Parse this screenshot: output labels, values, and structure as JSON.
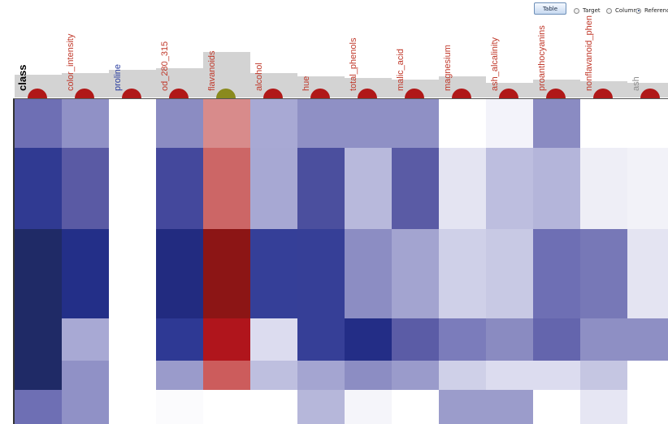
{
  "toolbar": {
    "table_button_label": "Table",
    "radio_options": [
      {
        "label": "Target",
        "checked": false
      },
      {
        "label": "Column",
        "checked": false
      },
      {
        "label": "Reference",
        "checked": true
      }
    ]
  },
  "chart_data": {
    "type": "heatmap",
    "columns": [
      {
        "name": "class",
        "color": "#000000",
        "marker": "#b01818"
      },
      {
        "name": "color_intensity",
        "color": "#c0392b",
        "marker": "#b01818"
      },
      {
        "name": "proline",
        "color": "#2a3ea0",
        "marker": "#b01818"
      },
      {
        "name": "od_280_315",
        "color": "#c0392b",
        "marker": "#b01818"
      },
      {
        "name": "flavanoids",
        "color": "#c0392b",
        "marker": "#8a8a1e"
      },
      {
        "name": "alcohol",
        "color": "#c0392b",
        "marker": "#b01818"
      },
      {
        "name": "hue",
        "color": "#c0392b",
        "marker": "#b01818"
      },
      {
        "name": "total_phenols",
        "color": "#c0392b",
        "marker": "#b01818"
      },
      {
        "name": "malic_acid",
        "color": "#c0392b",
        "marker": "#b01818"
      },
      {
        "name": "magnesium",
        "color": "#c0392b",
        "marker": "#b01818"
      },
      {
        "name": "ash_alcalinity",
        "color": "#c0392b",
        "marker": "#b01818"
      },
      {
        "name": "proanthocyanins",
        "color": "#c0392b",
        "marker": "#b01818"
      },
      {
        "name": "nonflavanoid_phen",
        "color": "#c0392b",
        "marker": "#b01818"
      },
      {
        "name": "ash",
        "color": "#8f8f8f",
        "marker": "#b01818"
      }
    ],
    "rows": [
      {
        "weight": 60,
        "colors": [
          "#6e6fb4",
          "#9091c6",
          "#ffffff",
          "#8b8cc2",
          "#d88b8b",
          "#a8a9d4",
          "#8f90c5",
          "#8f90c5",
          "#8f90c5",
          "#ffffff",
          "#f3f3fa",
          "#8a8bc2",
          "#ffffff",
          "#ffffff"
        ]
      },
      {
        "weight": 100,
        "colors": [
          "#303a92",
          "#5a5aa4",
          "#ffffff",
          "#44489c",
          "#cc6666",
          "#a7a8d3",
          "#4b4f9e",
          "#b8b9dc",
          "#5a5ba5",
          "#e4e4f2",
          "#bdbedf",
          "#b4b5da",
          "#eeeef6",
          "#f2f2f8"
        ]
      },
      {
        "weight": 110,
        "colors": [
          "#1f2a66",
          "#232f88",
          "#ffffff",
          "#222b80",
          "#8c1515",
          "#353f98",
          "#363f97",
          "#8c8dc3",
          "#a3a4d0",
          "#cfd0e8",
          "#c8c9e4",
          "#6e6fb4",
          "#7778b7",
          "#e4e4f2"
        ]
      },
      {
        "weight": 52,
        "colors": [
          "#1f2a66",
          "#a8a9d4",
          "#ffffff",
          "#2e3994",
          "#b0151c",
          "#dcdcef",
          "#363f97",
          "#232d86",
          "#5b5ca6",
          "#7b7cbb",
          "#8a8bc1",
          "#6465ad",
          "#8e8fc4",
          "#8e8fc4"
        ]
      },
      {
        "weight": 36,
        "colors": [
          "#1f2a66",
          "#9091c6",
          "#ffffff",
          "#9a9bcb",
          "#cc5c5c",
          "#bebfdf",
          "#a4a5d1",
          "#8c8dc3",
          "#9a9bcb",
          "#cfd0e8",
          "#dcdcef",
          "#dcdcef",
          "#c5c6e2",
          "#ffffff"
        ]
      },
      {
        "weight": 42,
        "colors": [
          "#6e6fb4",
          "#9091c6",
          "#ffffff",
          "#fbfbfd",
          "#ffffff",
          "#ffffff",
          "#b6b7da",
          "#f5f5fa",
          "#ffffff",
          "#9b9ccb",
          "#9b9ccb",
          "#ffffff",
          "#e6e6f3",
          "#ffffff"
        ]
      }
    ],
    "bar_levels": [
      0.28,
      0.3,
      0.34,
      0.36,
      0.56,
      0.3,
      0.26,
      0.24,
      0.22,
      0.26,
      0.18,
      0.22,
      0.2,
      0.18
    ]
  }
}
